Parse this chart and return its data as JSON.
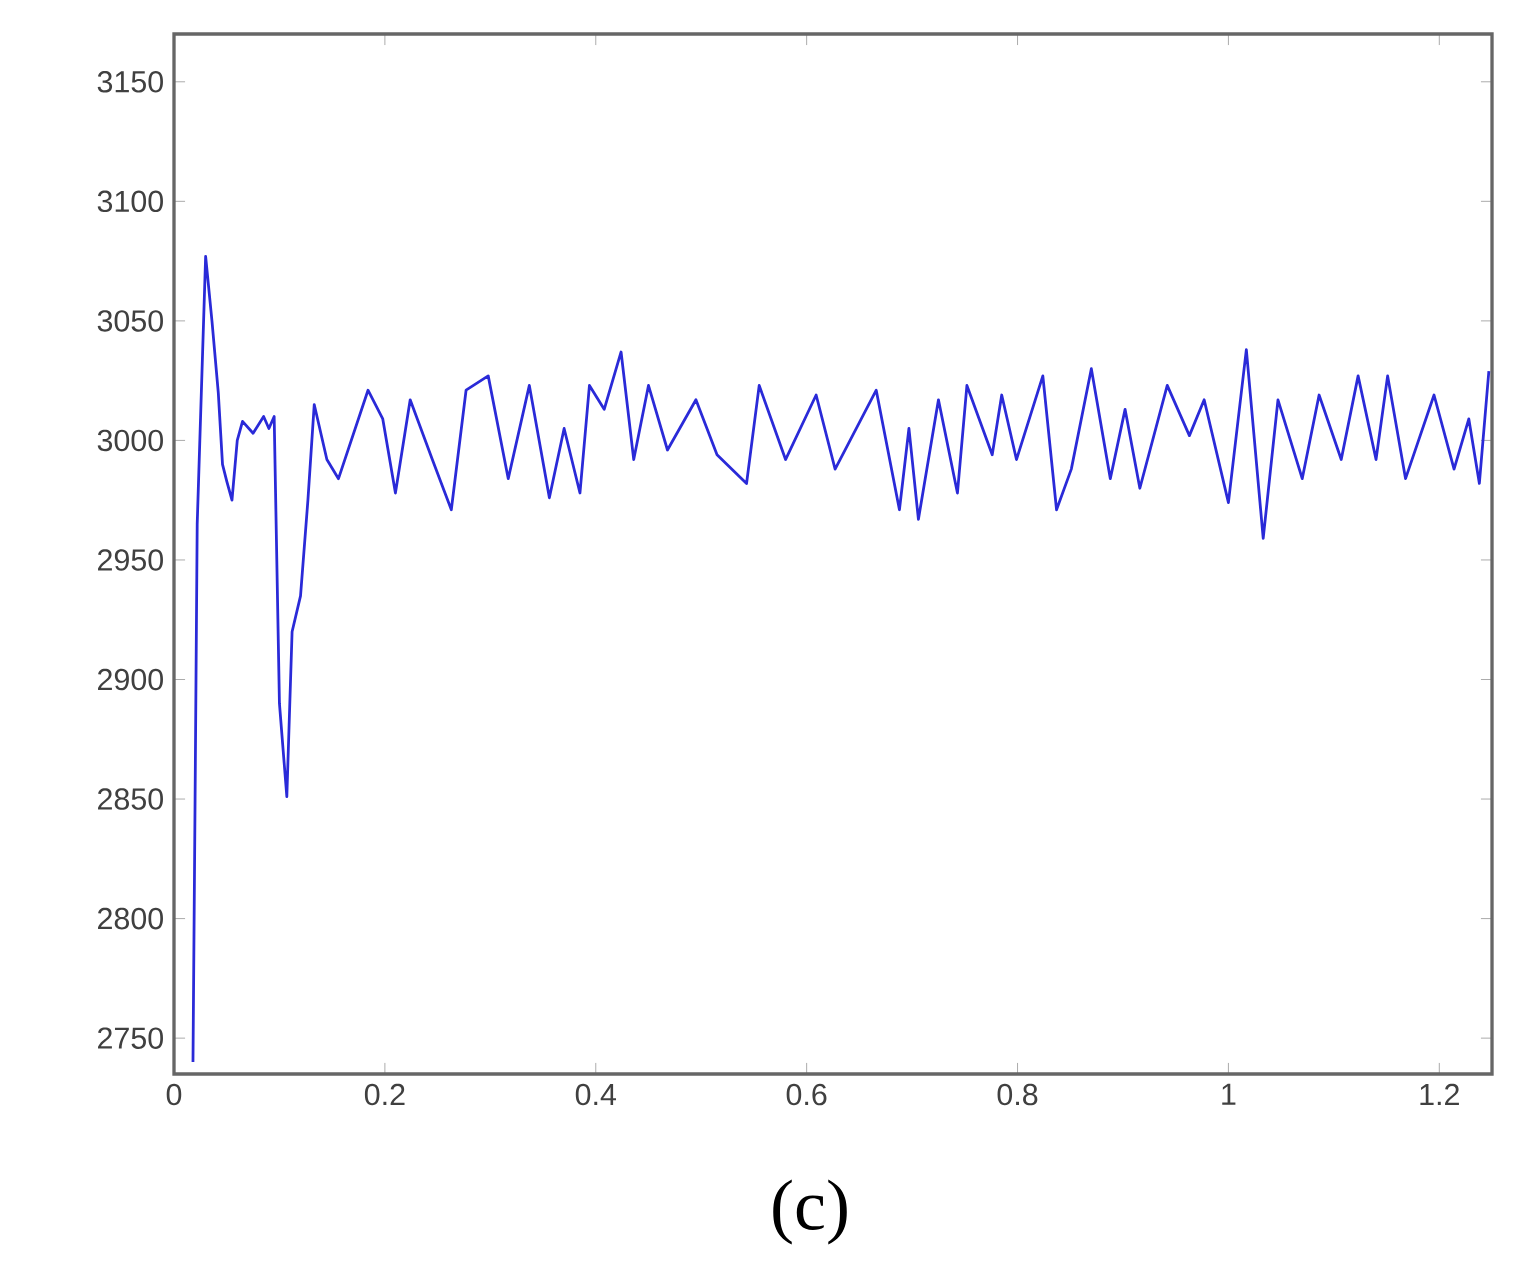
{
  "chart_data": {
    "type": "line",
    "x": [
      0.018,
      0.02,
      0.022,
      0.03,
      0.036,
      0.042,
      0.046,
      0.05,
      0.055,
      0.06,
      0.065,
      0.075,
      0.085,
      0.09,
      0.095,
      0.1,
      0.107,
      0.112,
      0.12,
      0.127,
      0.133,
      0.145,
      0.156,
      0.184,
      0.198,
      0.21,
      0.224,
      0.245,
      0.263,
      0.277,
      0.298,
      0.317,
      0.337,
      0.356,
      0.37,
      0.385,
      0.394,
      0.408,
      0.424,
      0.436,
      0.45,
      0.468,
      0.495,
      0.515,
      0.543,
      0.555,
      0.58,
      0.609,
      0.627,
      0.666,
      0.688,
      0.697,
      0.706,
      0.725,
      0.743,
      0.752,
      0.776,
      0.785,
      0.799,
      0.824,
      0.837,
      0.851,
      0.87,
      0.888,
      0.902,
      0.916,
      0.942,
      0.963,
      0.977,
      1.0,
      1.017,
      1.033,
      1.047,
      1.07,
      1.086,
      1.107,
      1.123,
      1.14,
      1.151,
      1.168,
      1.195,
      1.214,
      1.228,
      1.238,
      1.247
    ],
    "series": [
      {
        "color": "#2a2ad8",
        "values": [
          2740,
          2850,
          2965,
          3077,
          3050,
          3020,
          2990,
          2983,
          2975,
          3000,
          3008,
          3003,
          3010,
          3005,
          3010,
          2890,
          2851,
          2920,
          2935,
          2975,
          3015,
          2992,
          2984,
          3021,
          3009,
          2978,
          3017,
          2992,
          2971,
          3021,
          3027,
          2984,
          3023,
          2976,
          3005,
          2978,
          3023,
          3013,
          3037,
          2992,
          3023,
          2996,
          3017,
          2994,
          2982,
          3023,
          2992,
          3019,
          2988,
          3021,
          2971,
          3005,
          2967,
          3017,
          2978,
          3023,
          2994,
          3019,
          2992,
          3027,
          2971,
          2988,
          3030,
          2984,
          3013,
          2980,
          3023,
          3002,
          3017,
          2974,
          3038,
          2959,
          3017,
          2984,
          3019,
          2992,
          3027,
          2992,
          3027,
          2984,
          3019,
          2988,
          3009,
          2982,
          3029
        ]
      }
    ],
    "xlim": [
      0,
      1.25
    ],
    "ylim": [
      2735,
      3170
    ],
    "xticks": [
      0,
      0.2,
      0.4,
      0.6,
      0.8,
      1,
      1.2
    ],
    "yticks": [
      2750,
      2800,
      2850,
      2900,
      2950,
      3000,
      3050,
      3100,
      3150
    ],
    "annotations": [
      "(c)"
    ]
  }
}
